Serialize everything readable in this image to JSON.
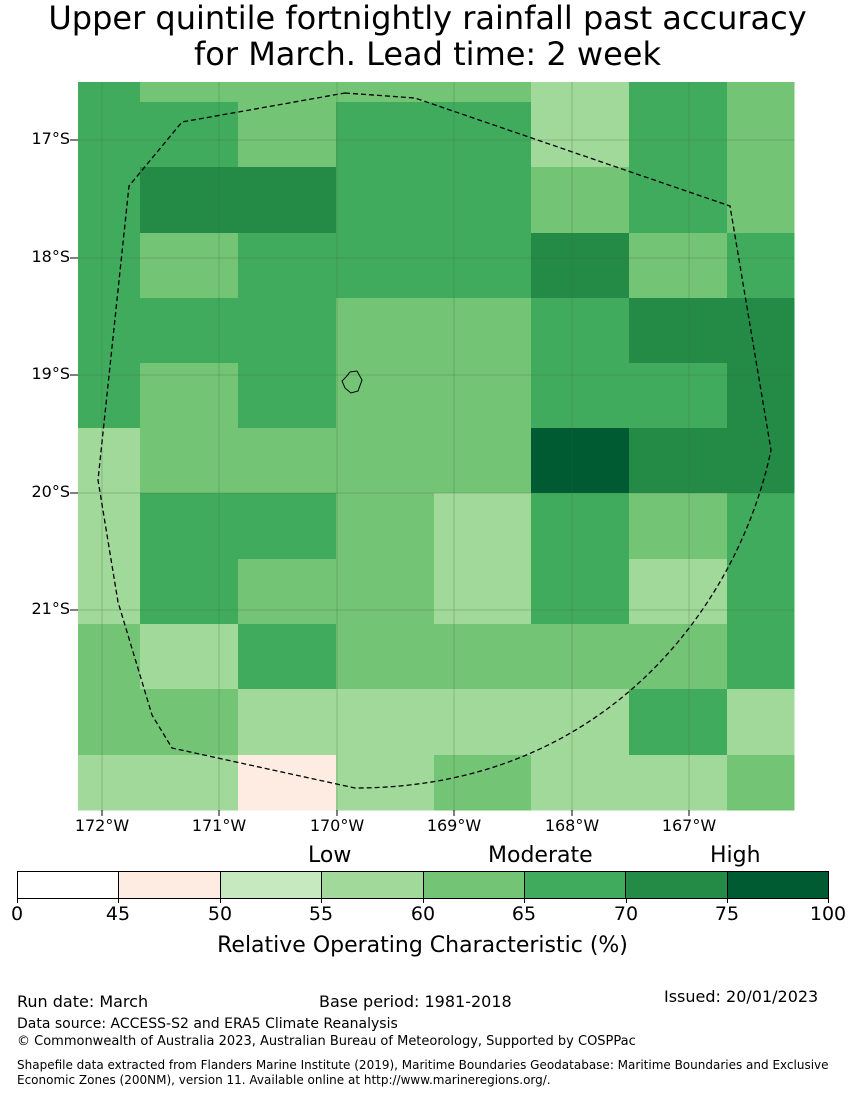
{
  "title_line1": "Upper quintile fortnightly rainfall past accuracy",
  "title_line2": "for March. Lead time: 2 week",
  "lat_labels": [
    "17°S",
    "18°S",
    "19°S",
    "20°S",
    "21°S"
  ],
  "lon_labels": [
    "172°W",
    "171°W",
    "170°W",
    "169°W",
    "168°W",
    "167°W"
  ],
  "colors": {
    "bin_0_45": "#ffffff",
    "bin_45_50": "#feebe2",
    "bin_50_55": "#c7e9c0",
    "bin_55_60": "#a1d99b",
    "bin_60_65": "#74c476",
    "bin_65_70": "#41ab5d",
    "bin_70_75": "#238b45",
    "bin_75_100": "#005a32"
  },
  "grid_values": [
    [
      "70",
      "60",
      "60",
      "60",
      "60",
      "55",
      "70",
      "60"
    ],
    [
      "70",
      "70",
      "60",
      "70",
      "70",
      "55",
      "70",
      "60"
    ],
    [
      "70",
      "75",
      "75",
      "70",
      "70",
      "60",
      "70",
      "60"
    ],
    [
      "70",
      "60",
      "70",
      "70",
      "70",
      "75",
      "60",
      "70"
    ],
    [
      "70",
      "70",
      "70",
      "60",
      "60",
      "70",
      "75",
      "75"
    ],
    [
      "70",
      "60",
      "70",
      "60",
      "60",
      "70",
      "70",
      "75"
    ],
    [
      "55",
      "60",
      "60",
      "60",
      "60",
      "100",
      "75",
      "75"
    ],
    [
      "55",
      "70",
      "70",
      "60",
      "55",
      "70",
      "60",
      "70"
    ],
    [
      "55",
      "70",
      "60",
      "60",
      "55",
      "70",
      "55",
      "70"
    ],
    [
      "60",
      "55",
      "70",
      "60",
      "60",
      "60",
      "60",
      "70"
    ],
    [
      "60",
      "60",
      "55",
      "55",
      "55",
      "55",
      "70",
      "55"
    ],
    [
      "55",
      "55",
      "50",
      "55",
      "60",
      "55",
      "55",
      "60"
    ]
  ],
  "colorbar": {
    "category_low": "Low",
    "category_moderate": "Moderate",
    "category_high": "High",
    "ticks": [
      "0",
      "45",
      "50",
      "55",
      "60",
      "65",
      "70",
      "75",
      "100"
    ],
    "title": "Relative Operating Characteristic (%)"
  },
  "footer": {
    "run_date": "Run date: March",
    "base_period": "Base period: 1981-2018",
    "issued": "Issued: 20/01/2023",
    "data_source": "Data source: ACCESS-S2 and ERA5 Climate Reanalysis",
    "copyright": "© Commonwealth of Australia 2023, Australian Bureau of Meteorology, Supported by COSPPac",
    "shapefile": "Shapefile data extracted from Flanders Marine Institute (2019), Maritime Boundaries Geodatabase: Maritime Boundaries and Exclusive Economic Zones (200NM), version 11. Available online at http://www.marineregions.org/."
  }
}
